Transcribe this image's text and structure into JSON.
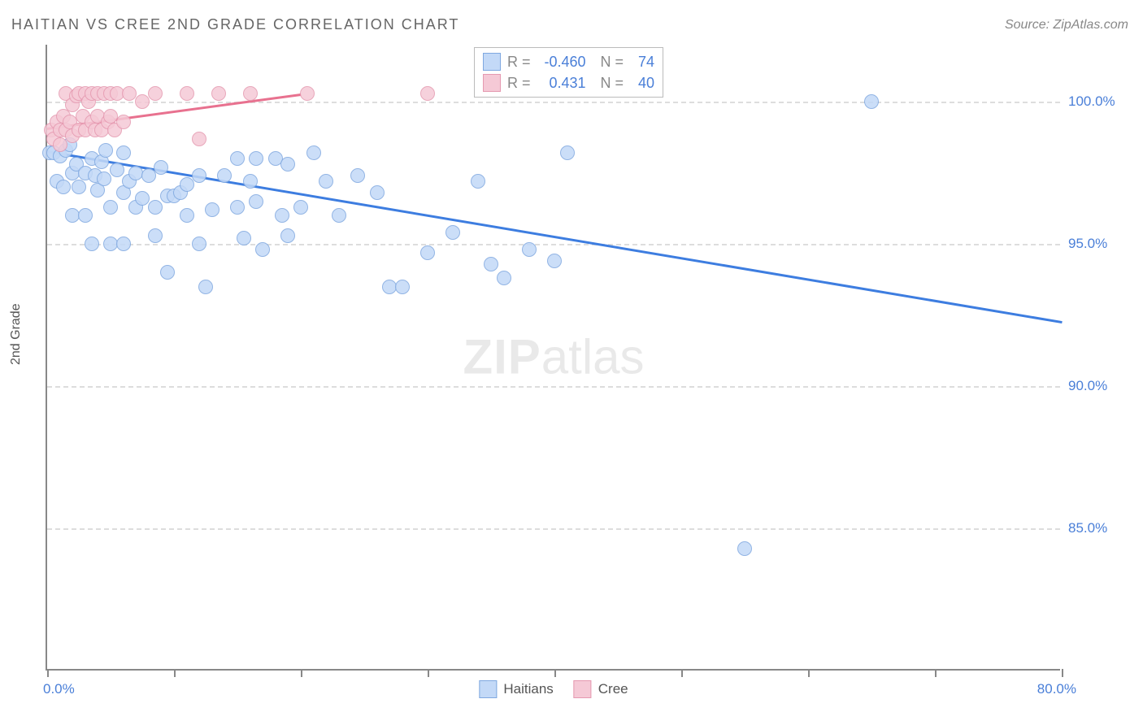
{
  "title": "HAITIAN VS CREE 2ND GRADE CORRELATION CHART",
  "source": "Source: ZipAtlas.com",
  "y_axis_label": "2nd Grade",
  "watermark_bold": "ZIP",
  "watermark_light": "atlas",
  "chart": {
    "type": "scatter",
    "xlim": [
      0,
      80
    ],
    "ylim": [
      80,
      102
    ],
    "y_ticks": [
      85,
      90,
      95,
      100
    ],
    "y_tick_labels": [
      "85.0%",
      "90.0%",
      "95.0%",
      "100.0%"
    ],
    "x_ticks": [
      0,
      10,
      20,
      30,
      40,
      50,
      60,
      70,
      80
    ],
    "x_min_label": "0.0%",
    "x_max_label": "80.0%",
    "background_color": "#ffffff",
    "grid_color": "#dddddd",
    "series": [
      {
        "name": "Haitians",
        "color_fill": "#c3d9f7",
        "color_stroke": "#7fa8e0",
        "marker_size": 18,
        "trend": {
          "x1": 0,
          "y1": 98.3,
          "x2": 80,
          "y2": 92.3,
          "color": "#3d7de0",
          "width": 3
        },
        "points": [
          [
            0.2,
            98.2
          ],
          [
            0.5,
            98.2
          ],
          [
            0.8,
            97.2
          ],
          [
            1.0,
            98.1
          ],
          [
            1.3,
            97.0
          ],
          [
            1.5,
            98.3
          ],
          [
            1.8,
            98.5
          ],
          [
            2.0,
            97.5
          ],
          [
            2.0,
            96.0
          ],
          [
            2.3,
            97.8
          ],
          [
            2.5,
            97.0
          ],
          [
            3.0,
            97.5
          ],
          [
            3.0,
            96.0
          ],
          [
            3.5,
            98.0
          ],
          [
            3.5,
            95.0
          ],
          [
            3.8,
            97.4
          ],
          [
            4.0,
            96.9
          ],
          [
            4.3,
            97.9
          ],
          [
            4.5,
            97.3
          ],
          [
            4.6,
            98.3
          ],
          [
            5.0,
            96.3
          ],
          [
            5.0,
            95.0
          ],
          [
            5.5,
            97.6
          ],
          [
            6.0,
            98.2
          ],
          [
            6.0,
            96.8
          ],
          [
            6.0,
            95.0
          ],
          [
            6.5,
            97.2
          ],
          [
            7.0,
            97.5
          ],
          [
            7.0,
            96.3
          ],
          [
            7.5,
            96.6
          ],
          [
            8.0,
            97.4
          ],
          [
            8.5,
            96.3
          ],
          [
            8.5,
            95.3
          ],
          [
            9.0,
            97.7
          ],
          [
            9.5,
            96.7
          ],
          [
            9.5,
            94.0
          ],
          [
            10.0,
            96.7
          ],
          [
            10.5,
            96.8
          ],
          [
            11.0,
            97.1
          ],
          [
            11.0,
            96.0
          ],
          [
            12.0,
            97.4
          ],
          [
            12.0,
            95.0
          ],
          [
            12.5,
            93.5
          ],
          [
            13.0,
            96.2
          ],
          [
            14.0,
            97.4
          ],
          [
            15.0,
            98.0
          ],
          [
            15.0,
            96.3
          ],
          [
            15.5,
            95.2
          ],
          [
            16.0,
            97.2
          ],
          [
            16.5,
            98.0
          ],
          [
            16.5,
            96.5
          ],
          [
            17.0,
            94.8
          ],
          [
            18.0,
            98.0
          ],
          [
            18.5,
            96.0
          ],
          [
            19.0,
            97.8
          ],
          [
            19.0,
            95.3
          ],
          [
            20.0,
            96.3
          ],
          [
            21.0,
            98.2
          ],
          [
            22.0,
            97.2
          ],
          [
            23.0,
            96.0
          ],
          [
            24.5,
            97.4
          ],
          [
            26.0,
            96.8
          ],
          [
            27.0,
            93.5
          ],
          [
            28.0,
            93.5
          ],
          [
            30.0,
            94.7
          ],
          [
            32.0,
            95.4
          ],
          [
            34.0,
            97.2
          ],
          [
            35.0,
            94.3
          ],
          [
            36.0,
            93.8
          ],
          [
            38.0,
            94.8
          ],
          [
            40.0,
            94.4
          ],
          [
            41.0,
            98.2
          ],
          [
            55.0,
            84.3
          ],
          [
            65.0,
            100.0
          ]
        ]
      },
      {
        "name": "Cree",
        "color_fill": "#f5c9d6",
        "color_stroke": "#e599b0",
        "marker_size": 18,
        "trend": {
          "x1": 0,
          "y1": 99.1,
          "x2": 20,
          "y2": 100.3,
          "color": "#e8718f",
          "width": 3
        },
        "points": [
          [
            0.3,
            99.0
          ],
          [
            0.5,
            98.7
          ],
          [
            0.8,
            99.3
          ],
          [
            1.0,
            99.0
          ],
          [
            1.0,
            98.5
          ],
          [
            1.3,
            99.5
          ],
          [
            1.5,
            99.0
          ],
          [
            1.5,
            100.3
          ],
          [
            1.8,
            99.3
          ],
          [
            2.0,
            99.9
          ],
          [
            2.0,
            98.8
          ],
          [
            2.3,
            100.2
          ],
          [
            2.5,
            99.0
          ],
          [
            2.5,
            100.3
          ],
          [
            2.8,
            99.5
          ],
          [
            3.0,
            100.3
          ],
          [
            3.0,
            99.0
          ],
          [
            3.3,
            100.0
          ],
          [
            3.5,
            99.3
          ],
          [
            3.5,
            100.3
          ],
          [
            3.8,
            99.0
          ],
          [
            4.0,
            100.3
          ],
          [
            4.0,
            99.5
          ],
          [
            4.3,
            99.0
          ],
          [
            4.5,
            100.3
          ],
          [
            4.8,
            99.3
          ],
          [
            5.0,
            100.3
          ],
          [
            5.0,
            99.5
          ],
          [
            5.3,
            99.0
          ],
          [
            5.5,
            100.3
          ],
          [
            6.0,
            99.3
          ],
          [
            6.5,
            100.3
          ],
          [
            7.5,
            100.0
          ],
          [
            8.5,
            100.3
          ],
          [
            11.0,
            100.3
          ],
          [
            12.0,
            98.7
          ],
          [
            13.5,
            100.3
          ],
          [
            16.0,
            100.3
          ],
          [
            20.5,
            100.3
          ],
          [
            30.0,
            100.3
          ]
        ]
      }
    ]
  },
  "legend_top": {
    "rows": [
      {
        "swatch_fill": "#c3d9f7",
        "swatch_stroke": "#7fa8e0",
        "r_label": "R =",
        "r_value": "-0.460",
        "n_label": "N =",
        "n_value": "74"
      },
      {
        "swatch_fill": "#f5c9d6",
        "swatch_stroke": "#e599b0",
        "r_label": "R =",
        "r_value": "0.431",
        "n_label": "N =",
        "n_value": "40"
      }
    ]
  },
  "legend_bottom": [
    {
      "swatch_fill": "#c3d9f7",
      "swatch_stroke": "#7fa8e0",
      "label": "Haitians"
    },
    {
      "swatch_fill": "#f5c9d6",
      "swatch_stroke": "#e599b0",
      "label": "Cree"
    }
  ]
}
